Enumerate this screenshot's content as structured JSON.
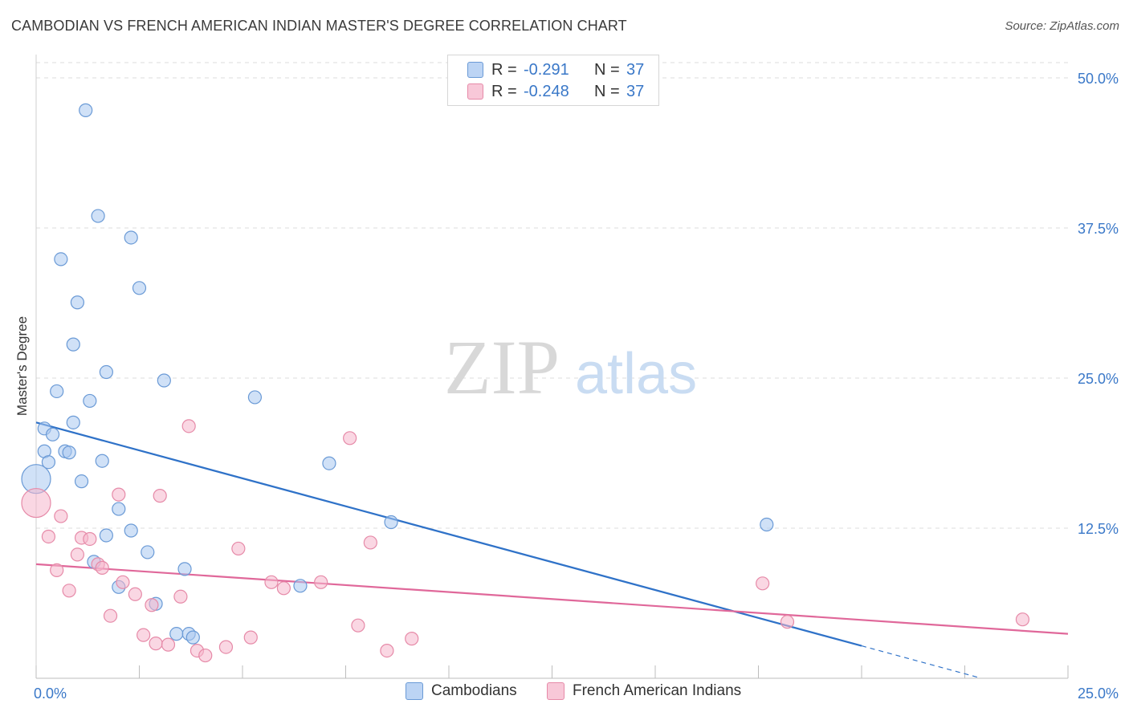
{
  "title": "CAMBODIAN VS FRENCH AMERICAN INDIAN MASTER'S DEGREE CORRELATION CHART",
  "source": "Source: ZipAtlas.com",
  "watermark": {
    "zip": "ZIP",
    "atlas": "atlas"
  },
  "legend": {
    "r_label": "R =",
    "n_label": "N =",
    "rows": [
      {
        "r": "-0.291",
        "n": "37"
      },
      {
        "r": "-0.248",
        "n": "37"
      }
    ]
  },
  "colors": {
    "blue_fill": "#aac8f0",
    "blue_stroke": "#6a9ad6",
    "blue_line": "#2f72c8",
    "pink_fill": "#f6b6cc",
    "pink_stroke": "#e68aa8",
    "pink_line": "#e0689a",
    "tick_text": "#3a78c8",
    "grid": "#dddddd"
  },
  "chart_data": {
    "type": "scatter",
    "xlabel": "",
    "ylabel": "Master's Degree",
    "xlim": [
      0,
      25
    ],
    "ylim": [
      0,
      50
    ],
    "x_tick_labels": [
      {
        "value": 0,
        "label": "0.0%"
      },
      {
        "value": 25,
        "label": "25.0%"
      }
    ],
    "y_tick_labels": [
      {
        "value": 12.5,
        "label": "12.5%"
      },
      {
        "value": 25,
        "label": "25.0%"
      },
      {
        "value": 37.5,
        "label": "37.5%"
      },
      {
        "value": 50,
        "label": "50.0%"
      }
    ],
    "grid": true,
    "legend_position": "top-center",
    "series": [
      {
        "name": "Cambodians",
        "points": [
          [
            1.2,
            47.3
          ],
          [
            1.5,
            38.5
          ],
          [
            2.3,
            36.7
          ],
          [
            0.6,
            34.9
          ],
          [
            2.5,
            32.5
          ],
          [
            1.0,
            31.3
          ],
          [
            0.9,
            27.8
          ],
          [
            1.7,
            25.5
          ],
          [
            3.1,
            24.8
          ],
          [
            0.5,
            23.9
          ],
          [
            1.3,
            23.1
          ],
          [
            5.3,
            23.4
          ],
          [
            0.9,
            21.3
          ],
          [
            0.2,
            20.8
          ],
          [
            0.4,
            20.3
          ],
          [
            0.2,
            18.9
          ],
          [
            0.7,
            18.9
          ],
          [
            0.8,
            18.8
          ],
          [
            0.3,
            18.0
          ],
          [
            1.6,
            18.1
          ],
          [
            7.1,
            17.9
          ],
          [
            0.0,
            16.6
          ],
          [
            1.1,
            16.4
          ],
          [
            2.0,
            14.1
          ],
          [
            8.6,
            13.0
          ],
          [
            17.7,
            12.8
          ],
          [
            2.3,
            12.3
          ],
          [
            1.7,
            11.9
          ],
          [
            2.7,
            10.5
          ],
          [
            1.4,
            9.7
          ],
          [
            3.6,
            9.1
          ],
          [
            2.0,
            7.6
          ],
          [
            2.9,
            6.2
          ],
          [
            6.4,
            7.7
          ],
          [
            3.4,
            3.7
          ],
          [
            3.7,
            3.7
          ],
          [
            3.8,
            3.4
          ]
        ],
        "sizes": [
          "m",
          "m",
          "m",
          "m",
          "m",
          "m",
          "m",
          "m",
          "m",
          "m",
          "m",
          "m",
          "m",
          "m",
          "m",
          "m",
          "m",
          "m",
          "m",
          "m",
          "m",
          "l",
          "m",
          "m",
          "m",
          "m",
          "m",
          "m",
          "m",
          "m",
          "m",
          "m",
          "m",
          "m",
          "m",
          "m",
          "m"
        ],
        "trend": {
          "x_start": 0,
          "y_start": 21.3,
          "x_solid_end": 20,
          "x_end": 22.8
        }
      },
      {
        "name": "French American Indians",
        "points": [
          [
            3.7,
            21.0
          ],
          [
            7.6,
            20.0
          ],
          [
            2.0,
            15.3
          ],
          [
            3.0,
            15.2
          ],
          [
            0.0,
            14.6
          ],
          [
            0.6,
            13.5
          ],
          [
            0.3,
            11.8
          ],
          [
            1.1,
            11.7
          ],
          [
            1.3,
            11.6
          ],
          [
            8.1,
            11.3
          ],
          [
            4.9,
            10.8
          ],
          [
            1.0,
            10.3
          ],
          [
            1.5,
            9.5
          ],
          [
            1.6,
            9.2
          ],
          [
            0.5,
            9.0
          ],
          [
            2.1,
            8.0
          ],
          [
            5.7,
            8.0
          ],
          [
            6.9,
            8.0
          ],
          [
            17.6,
            7.9
          ],
          [
            6.0,
            7.5
          ],
          [
            0.8,
            7.3
          ],
          [
            2.4,
            7.0
          ],
          [
            3.5,
            6.8
          ],
          [
            2.8,
            6.1
          ],
          [
            1.8,
            5.2
          ],
          [
            23.9,
            4.9
          ],
          [
            18.2,
            4.7
          ],
          [
            7.8,
            4.4
          ],
          [
            2.6,
            3.6
          ],
          [
            5.2,
            3.4
          ],
          [
            9.1,
            3.3
          ],
          [
            2.9,
            2.9
          ],
          [
            3.2,
            2.8
          ],
          [
            4.6,
            2.6
          ],
          [
            3.9,
            2.3
          ],
          [
            8.5,
            2.3
          ],
          [
            4.1,
            1.9
          ]
        ],
        "sizes": [
          "m",
          "m",
          "m",
          "m",
          "l",
          "m",
          "m",
          "m",
          "m",
          "m",
          "m",
          "m",
          "m",
          "m",
          "m",
          "m",
          "m",
          "m",
          "m",
          "m",
          "m",
          "m",
          "m",
          "m",
          "m",
          "m",
          "m",
          "m",
          "m",
          "m",
          "m",
          "m",
          "m",
          "m",
          "m",
          "m",
          "m"
        ],
        "trend": {
          "x_start": 0,
          "y_start": 9.5,
          "x_solid_end": 25,
          "x_end": 25
        }
      }
    ]
  }
}
